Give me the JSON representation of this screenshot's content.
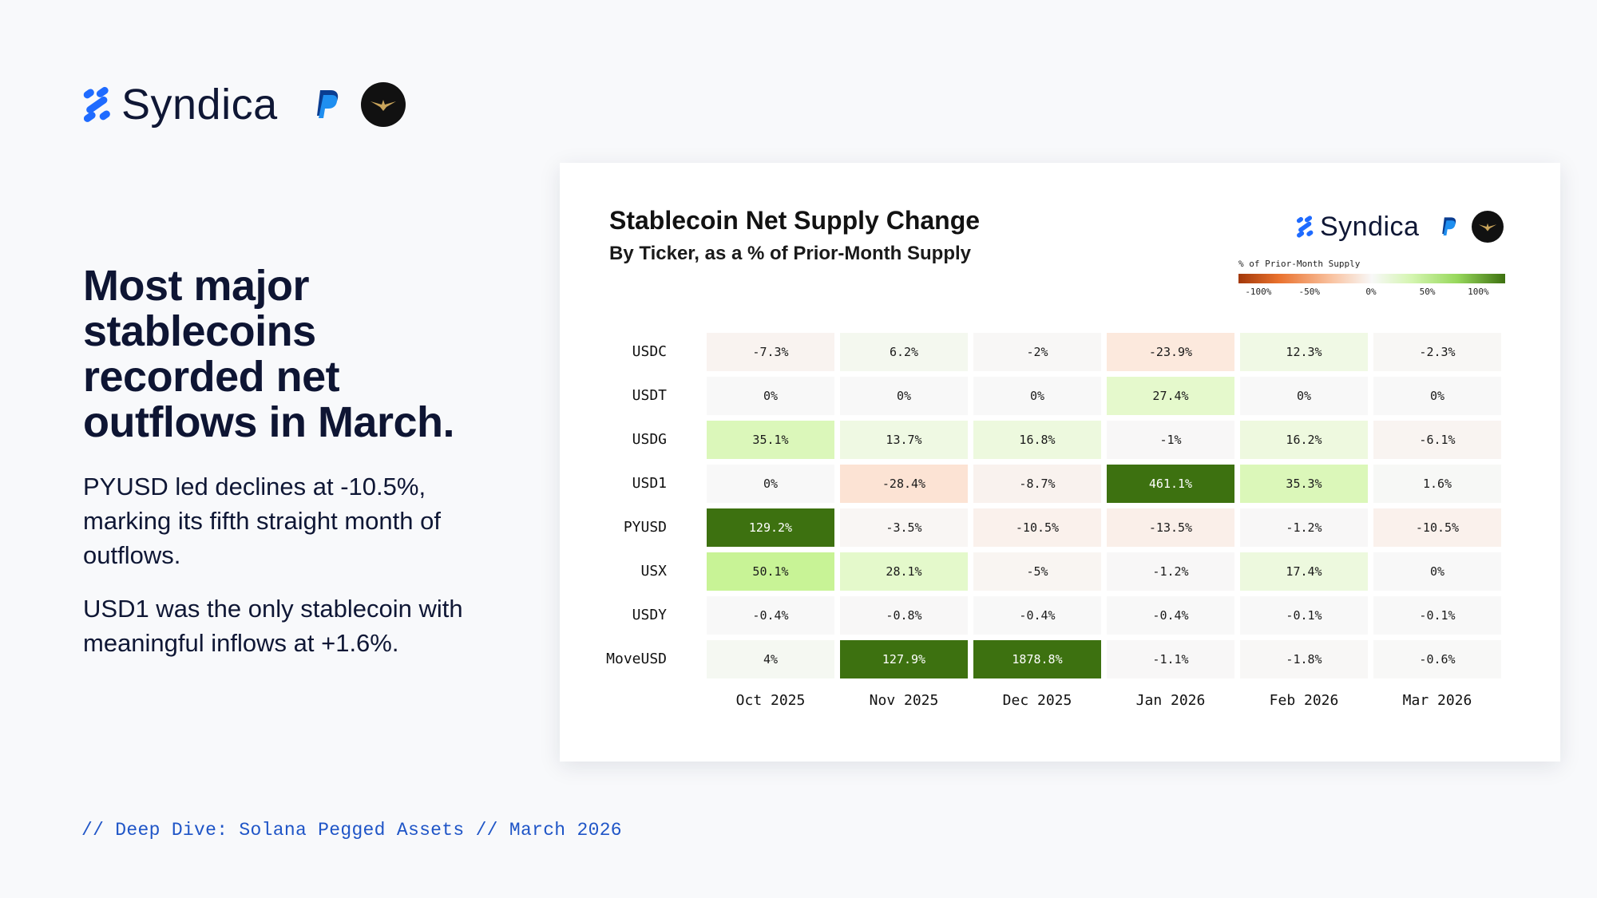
{
  "brand": {
    "name": "Syndica",
    "colors": {
      "accent": "#1f6bff",
      "text": "#0f1735",
      "link": "#1f55c7"
    },
    "icons": [
      "syndica-logo-icon",
      "paypal-logo-icon",
      "partner-eagle-logo-icon"
    ]
  },
  "copy": {
    "headline": "Most major stablecoins recorded net outflows in March.",
    "paragraph_1": "PYUSD led declines at -10.5%, marking its fifth straight month of outflows.",
    "paragraph_2": "USD1 was the only stablecoin with meaningful inflows at +1.6%.",
    "footer": "// Deep Dive: Solana Pegged Assets // March 2026"
  },
  "chart_data": {
    "type": "heatmap",
    "title": "Stablecoin Net Supply Change",
    "subtitle": "By Ticker, as a % of Prior-Month Supply",
    "legend": {
      "title": "% of Prior-Month Supply",
      "ticks": [
        "-100%",
        "-50%",
        "0%",
        "50%",
        "100%"
      ],
      "range": [
        -100,
        100
      ],
      "placement": "top-right"
    },
    "rows": [
      "USDC",
      "USDT",
      "USDG",
      "USD1",
      "PYUSD",
      "USX",
      "USDY",
      "MoveUSD"
    ],
    "columns": [
      "Oct 2025",
      "Nov 2025",
      "Dec 2025",
      "Jan 2026",
      "Feb 2026",
      "Mar 2026"
    ],
    "values": [
      [
        -7.3,
        6.2,
        -2,
        -23.9,
        12.3,
        -2.3
      ],
      [
        0,
        0,
        0,
        27.4,
        0,
        0
      ],
      [
        35.1,
        13.7,
        16.8,
        -1,
        16.2,
        -6.1
      ],
      [
        0,
        -28.4,
        -8.7,
        461.1,
        35.3,
        1.6
      ],
      [
        129.2,
        -3.5,
        -10.5,
        -13.5,
        -1.2,
        -10.5
      ],
      [
        50.1,
        28.1,
        -5,
        -1.2,
        17.4,
        0
      ],
      [
        -0.4,
        -0.8,
        -0.4,
        -0.4,
        -0.1,
        -0.1
      ],
      [
        4,
        127.9,
        1878.8,
        -1.1,
        -1.8,
        -0.6
      ]
    ],
    "labels": [
      [
        "-7.3%",
        "6.2%",
        "-2%",
        "-23.9%",
        "12.3%",
        "-2.3%"
      ],
      [
        "0%",
        "0%",
        "0%",
        "27.4%",
        "0%",
        "0%"
      ],
      [
        "35.1%",
        "13.7%",
        "16.8%",
        "-1%",
        "16.2%",
        "-6.1%"
      ],
      [
        "0%",
        "-28.4%",
        "-8.7%",
        "461.1%",
        "35.3%",
        "1.6%"
      ],
      [
        "129.2%",
        "-3.5%",
        "-10.5%",
        "-13.5%",
        "-1.2%",
        "-10.5%"
      ],
      [
        "50.1%",
        "28.1%",
        "-5%",
        "-1.2%",
        "17.4%",
        "0%"
      ],
      [
        "-0.4%",
        "-0.8%",
        "-0.4%",
        "-0.4%",
        "-0.1%",
        "-0.1%"
      ],
      [
        "4%",
        "127.9%",
        "1878.8%",
        "-1.1%",
        "-1.8%",
        "-0.6%"
      ]
    ]
  }
}
